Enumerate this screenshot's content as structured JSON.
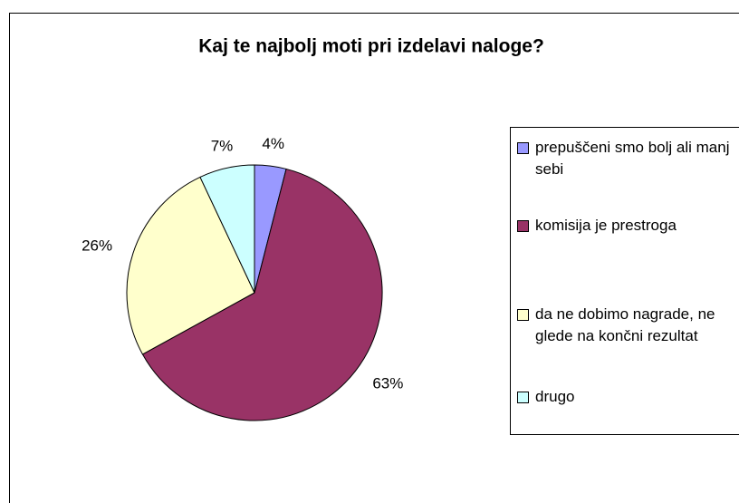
{
  "chart_data": {
    "type": "pie",
    "title": "Kaj te najbolj moti pri izdelavi naloge?",
    "categories": [
      "prepuščeni smo bolj ali manj sebi",
      "komisija je prestroga",
      "da ne dobimo nagrade, ne glede na končni rezultat",
      "drugo"
    ],
    "values": [
      4,
      63,
      26,
      7
    ],
    "value_labels": [
      "4%",
      "63%",
      "26%",
      "7%"
    ],
    "colors": [
      "#9999ff",
      "#993366",
      "#ffffcc",
      "#ccffff"
    ]
  }
}
